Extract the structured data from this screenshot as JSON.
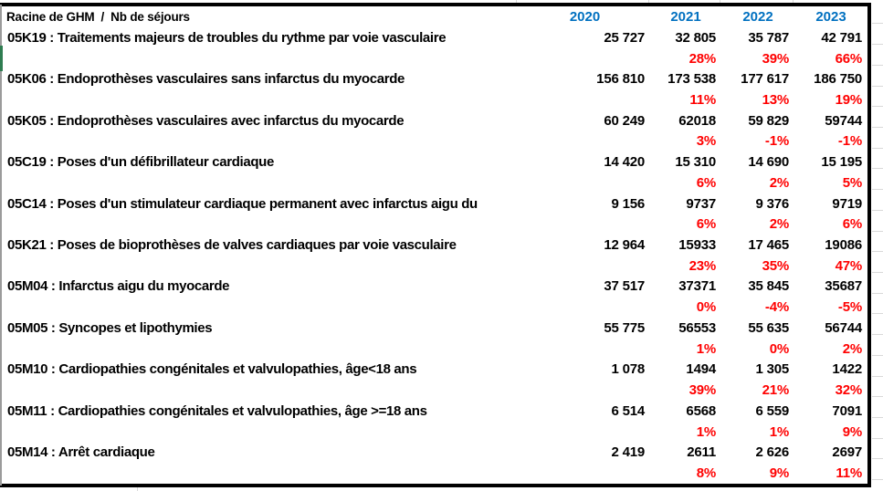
{
  "table": {
    "header": {
      "corner": "Racine de GHM  /  Nb de séjours",
      "years": [
        "2020",
        "2021",
        "2022",
        "2023"
      ]
    },
    "rows": [
      {
        "label": "05K19 : Traitements majeurs de troubles du rythme par voie vasculaire",
        "values": [
          "25 727",
          "32 805",
          "35 787",
          "42 791"
        ],
        "pcts": [
          "28%",
          "39%",
          "66%"
        ]
      },
      {
        "label": "05K06 : Endoprothèses vasculaires sans infarctus du myocarde",
        "values": [
          "156 810",
          "173 538",
          "177 617",
          "186 750"
        ],
        "pcts": [
          "11%",
          "13%",
          "19%"
        ]
      },
      {
        "label": "05K05 : Endoprothèses vasculaires avec infarctus du myocarde",
        "values": [
          "60 249",
          "62018",
          "59 829",
          "59744"
        ],
        "pcts": [
          "3%",
          "-1%",
          "-1%"
        ]
      },
      {
        "label": "05C19 : Poses d'un défibrillateur cardiaque",
        "values": [
          "14 420",
          "15 310",
          "14 690",
          "15 195"
        ],
        "pcts": [
          "6%",
          "2%",
          "5%"
        ]
      },
      {
        "label": "05C14 : Poses d'un stimulateur cardiaque permanent avec infarctus aigu du",
        "values": [
          "9 156",
          "9737",
          "9 376",
          "9719"
        ],
        "pcts": [
          "6%",
          "2%",
          "6%"
        ]
      },
      {
        "label": "05K21 : Poses de bioprothèses de valves cardiaques par voie vasculaire",
        "values": [
          "12 964",
          "15933",
          "17 465",
          "19086"
        ],
        "pcts": [
          "23%",
          "35%",
          "47%"
        ]
      },
      {
        "label": "05M04 : Infarctus aigu du myocarde",
        "values": [
          "37 517",
          "37371",
          "35 845",
          "35687"
        ],
        "pcts": [
          "0%",
          "-4%",
          "-5%"
        ]
      },
      {
        "label": "05M05 : Syncopes et lipothymies",
        "values": [
          "55 775",
          "56553",
          "55 635",
          "56744"
        ],
        "pcts": [
          "1%",
          "0%",
          "2%"
        ]
      },
      {
        "label": "05M10 : Cardiopathies congénitales et valvulopathies, âge<18 ans",
        "values": [
          "1 078",
          "1494",
          "1 305",
          "1422"
        ],
        "pcts": [
          "39%",
          "21%",
          "32%"
        ]
      },
      {
        "label": "05M11 : Cardiopathies congénitales et valvulopathies, âge >=18 ans",
        "values": [
          "6 514",
          "6568",
          "6 559",
          "7091"
        ],
        "pcts": [
          "1%",
          "1%",
          "9%"
        ]
      },
      {
        "label": "05M14 : Arrêt cardiaque",
        "values": [
          "2 419",
          "2611",
          "2 626",
          "2697"
        ],
        "pcts": [
          "8%",
          "9%",
          "11%"
        ]
      }
    ]
  },
  "colors": {
    "year_blue": "#0070C0",
    "pct_red": "#FF0000",
    "border_black": "#000000",
    "gridline_gray": "#D9D9D9",
    "marker_green": "#2F7D51"
  }
}
